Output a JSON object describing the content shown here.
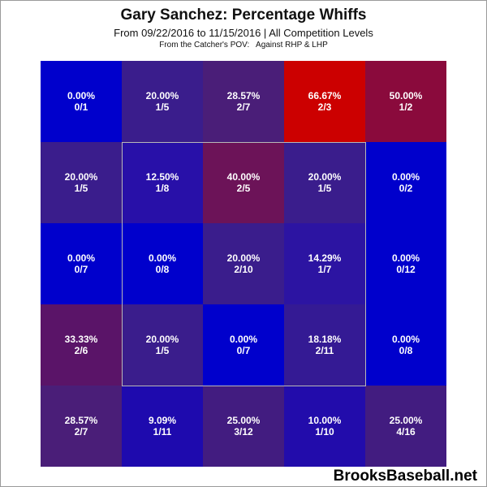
{
  "chart_data": {
    "type": "heatmap",
    "title": "Gary Sanchez: Percentage Whiffs",
    "subtitle": "From 09/22/2016 to 11/15/2016 | All Competition Levels",
    "subtitle2": "From the Catcher's POV:   Against RHP & LHP",
    "rows": [
      [
        {
          "pct": "0.00%",
          "ratio": "0/1",
          "value": 0.0,
          "color": "#0000cc"
        },
        {
          "pct": "20.00%",
          "ratio": "1/5",
          "value": 20.0,
          "color": "#3a1d8c"
        },
        {
          "pct": "28.57%",
          "ratio": "2/7",
          "value": 28.57,
          "color": "#4a1e78"
        },
        {
          "pct": "66.67%",
          "ratio": "2/3",
          "value": 66.67,
          "color": "#cc0000"
        },
        {
          "pct": "50.00%",
          "ratio": "1/2",
          "value": 50.0,
          "color": "#8a0a3c"
        }
      ],
      [
        {
          "pct": "20.00%",
          "ratio": "1/5",
          "value": 20.0,
          "color": "#3a1d8c"
        },
        {
          "pct": "12.50%",
          "ratio": "1/8",
          "value": 12.5,
          "color": "#2810a8"
        },
        {
          "pct": "40.00%",
          "ratio": "2/5",
          "value": 40.0,
          "color": "#6c1358"
        },
        {
          "pct": "20.00%",
          "ratio": "1/5",
          "value": 20.0,
          "color": "#3a1d8c"
        },
        {
          "pct": "0.00%",
          "ratio": "0/2",
          "value": 0.0,
          "color": "#0000cc"
        }
      ],
      [
        {
          "pct": "0.00%",
          "ratio": "0/7",
          "value": 0.0,
          "color": "#0000cc"
        },
        {
          "pct": "0.00%",
          "ratio": "0/8",
          "value": 0.0,
          "color": "#0000cc"
        },
        {
          "pct": "20.00%",
          "ratio": "2/10",
          "value": 20.0,
          "color": "#3a1d8c"
        },
        {
          "pct": "14.29%",
          "ratio": "1/7",
          "value": 14.29,
          "color": "#2c14a2"
        },
        {
          "pct": "0.00%",
          "ratio": "0/12",
          "value": 0.0,
          "color": "#0000cc"
        }
      ],
      [
        {
          "pct": "33.33%",
          "ratio": "2/6",
          "value": 33.33,
          "color": "#5a1468"
        },
        {
          "pct": "20.00%",
          "ratio": "1/5",
          "value": 20.0,
          "color": "#3a1d8c"
        },
        {
          "pct": "0.00%",
          "ratio": "0/7",
          "value": 0.0,
          "color": "#0000cc"
        },
        {
          "pct": "18.18%",
          "ratio": "2/11",
          "value": 18.18,
          "color": "#341a94"
        },
        {
          "pct": "0.00%",
          "ratio": "0/8",
          "value": 0.0,
          "color": "#0000cc"
        }
      ],
      [
        {
          "pct": "28.57%",
          "ratio": "2/7",
          "value": 28.57,
          "color": "#4a1e78"
        },
        {
          "pct": "9.09%",
          "ratio": "1/11",
          "value": 9.09,
          "color": "#1e0aae"
        },
        {
          "pct": "25.00%",
          "ratio": "3/12",
          "value": 25.0,
          "color": "#421c80"
        },
        {
          "pct": "10.00%",
          "ratio": "1/10",
          "value": 10.0,
          "color": "#220cab"
        },
        {
          "pct": "25.00%",
          "ratio": "4/16",
          "value": 25.0,
          "color": "#421c80"
        }
      ]
    ],
    "strike_zone": {
      "row_start": 1,
      "row_end": 3,
      "col_start": 1,
      "col_end": 3
    },
    "watermark": "BrooksBaseball.net"
  }
}
